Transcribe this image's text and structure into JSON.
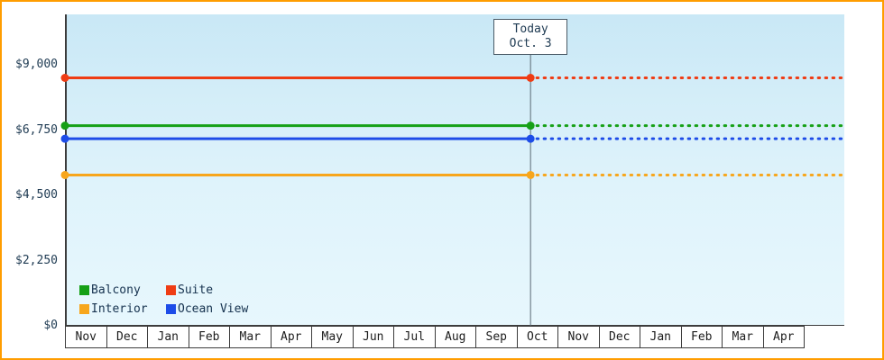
{
  "chart_data": {
    "type": "line",
    "x_categories": [
      "Nov",
      "Dec",
      "Jan",
      "Feb",
      "Mar",
      "Apr",
      "May",
      "Jun",
      "Jul",
      "Aug",
      "Sep",
      "Oct",
      "Nov",
      "Dec",
      "Jan",
      "Feb",
      "Mar",
      "Apr"
    ],
    "y_ticks": [
      {
        "value": 0,
        "label": "$0"
      },
      {
        "value": 2250,
        "label": "$2,250"
      },
      {
        "value": 4500,
        "label": "$4,500"
      },
      {
        "value": 6750,
        "label": "$6,750"
      },
      {
        "value": 9000,
        "label": "$9,000"
      }
    ],
    "ylim": [
      0,
      10700
    ],
    "grid": false,
    "legend_position": "bottom-left",
    "today": {
      "line1": "Today",
      "line2": "Oct. 3",
      "month_index": 11,
      "day_fraction": 0.1
    },
    "series": [
      {
        "name": "Suite",
        "color": "#ef3c14",
        "value": 8550
      },
      {
        "name": "Balcony",
        "color": "#16a016",
        "value": 6900
      },
      {
        "name": "Ocean View",
        "color": "#1d4ce8",
        "value": 6450
      },
      {
        "name": "Interior",
        "color": "#f7a61c",
        "value": 5200
      }
    ],
    "legend_rows": [
      [
        "Balcony",
        "Suite"
      ],
      [
        "Interior",
        "Ocean View"
      ]
    ]
  },
  "colors": {
    "frame_border": "#ff9d00",
    "axis": "#3c3c3c",
    "today_line": "#5a6a74",
    "text": "#1e3a52"
  }
}
